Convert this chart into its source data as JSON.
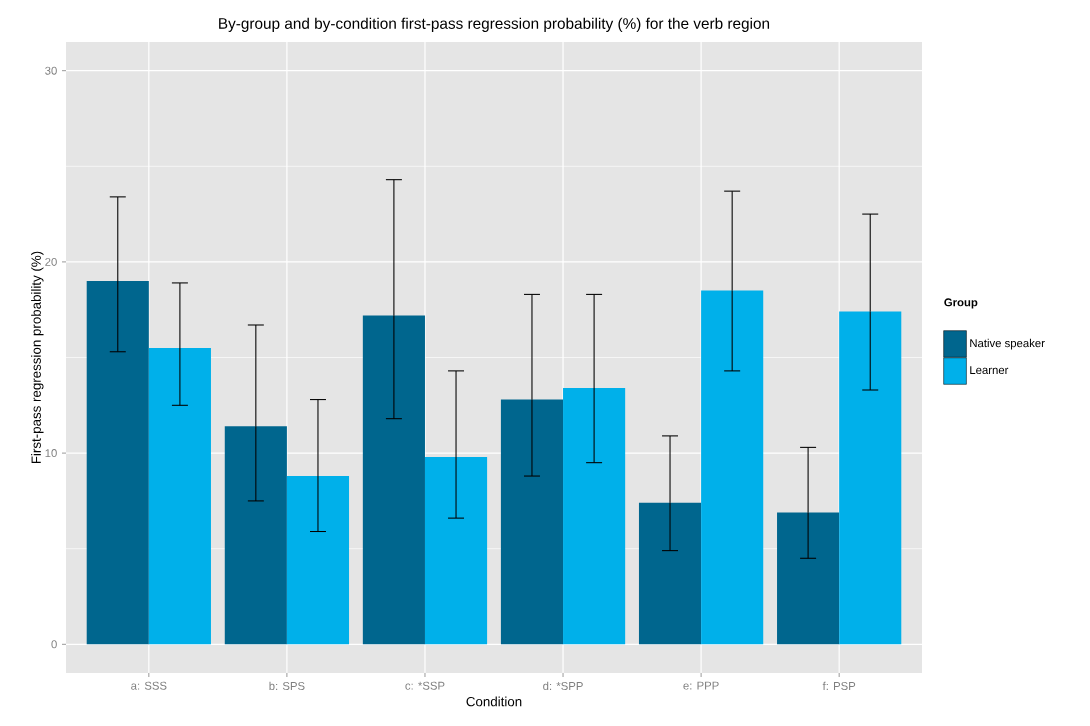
{
  "chart_data": {
    "type": "bar",
    "title": "By-group and by-condition first-pass regression probability (%) for the verb region",
    "xlabel": "Condition",
    "ylabel": "First-pass regression probability (%)",
    "legend_title": "Group",
    "categories": [
      "a: SSS",
      "b: SPS",
      "c: *SSP",
      "d: *SPP",
      "e: PPP",
      "f: PSP"
    ],
    "series": [
      {
        "name": "Native speaker",
        "color": "#00668e",
        "values": [
          19.0,
          11.4,
          17.2,
          12.8,
          7.4,
          6.9
        ],
        "errors": [
          [
            15.3,
            23.4
          ],
          [
            7.5,
            16.7
          ],
          [
            11.8,
            24.3
          ],
          [
            8.8,
            18.3
          ],
          [
            4.9,
            10.9
          ],
          [
            4.5,
            10.3
          ]
        ]
      },
      {
        "name": "Learner",
        "color": "#00b0ea",
        "values": [
          15.5,
          8.8,
          9.8,
          13.4,
          18.5,
          17.4
        ],
        "errors": [
          [
            12.5,
            18.9
          ],
          [
            5.9,
            12.8
          ],
          [
            6.6,
            14.3
          ],
          [
            9.5,
            18.3
          ],
          [
            14.3,
            23.7
          ],
          [
            13.3,
            22.5
          ]
        ]
      }
    ],
    "ylim": [
      -1.5,
      31.5
    ],
    "yticks": [
      0,
      10,
      20,
      30
    ],
    "grid": true,
    "legend": "right"
  }
}
